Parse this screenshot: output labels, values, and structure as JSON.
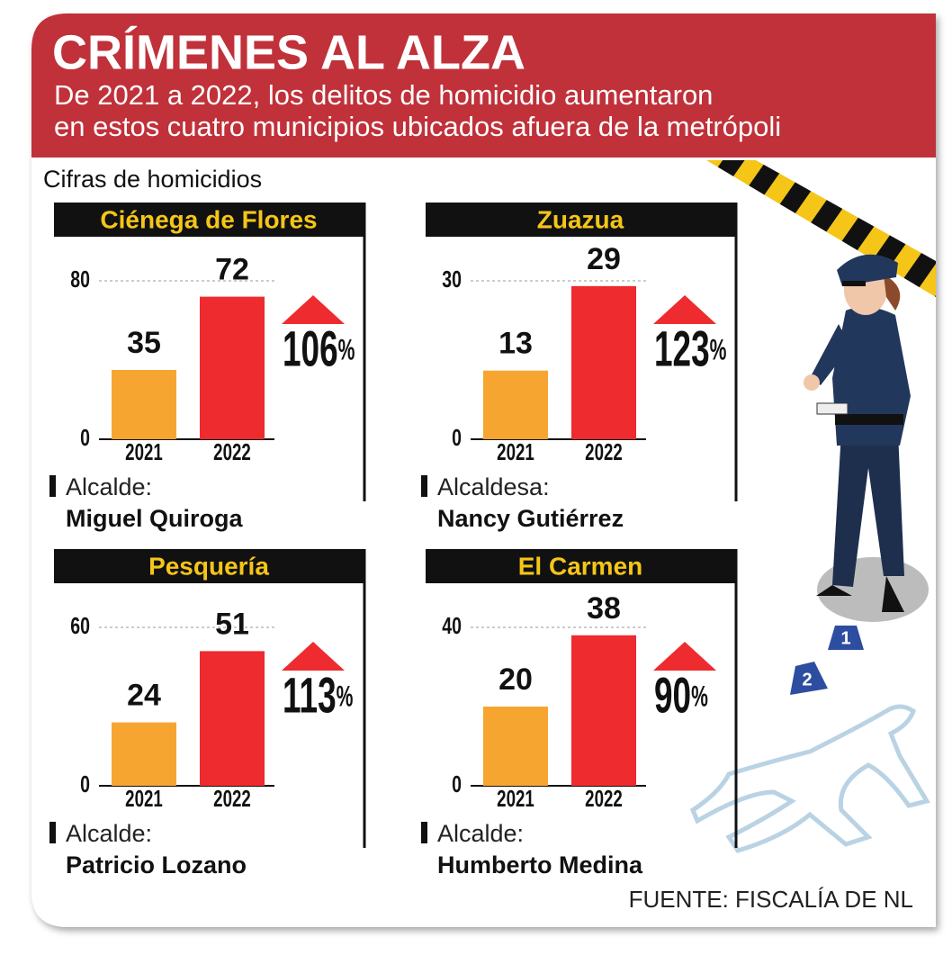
{
  "header": {
    "title": "CRÍMENES AL ALZA",
    "subtitle": [
      "De 2021 a 2022, los delitos de homicidio aumentaron",
      "en estos cuatro municipios ubicados afuera de la metrópoli"
    ]
  },
  "section_label": "Cifras de homicidios",
  "chart_data": [
    {
      "type": "bar",
      "title": "Ciénega de Flores",
      "categories": [
        "2021",
        "2022"
      ],
      "values": [
        35,
        72
      ],
      "colors": [
        "#f7a531",
        "#ee2b2e"
      ],
      "ylim": [
        0,
        80
      ],
      "yticks": [
        0,
        80
      ],
      "grid": true,
      "change": 106,
      "change_unit": "%",
      "mayor_role": "Alcalde:",
      "mayor_name": "Miguel Quiroga"
    },
    {
      "type": "bar",
      "title": "Zuazua",
      "categories": [
        "2021",
        "2022"
      ],
      "values": [
        13,
        29
      ],
      "colors": [
        "#f7a531",
        "#ee2b2e"
      ],
      "ylim": [
        0,
        30
      ],
      "yticks": [
        0,
        30
      ],
      "grid": true,
      "change": 123,
      "change_unit": "%",
      "mayor_role": "Alcaldesa:",
      "mayor_name": "Nancy Gutiérrez"
    },
    {
      "type": "bar",
      "title": "Pesquería",
      "categories": [
        "2021",
        "2022"
      ],
      "values": [
        24,
        51
      ],
      "colors": [
        "#f7a531",
        "#ee2b2e"
      ],
      "ylim": [
        0,
        60
      ],
      "yticks": [
        0,
        60
      ],
      "grid": true,
      "change": 113,
      "change_unit": "%",
      "mayor_role": "Alcalde:",
      "mayor_name": "Patricio Lozano"
    },
    {
      "type": "bar",
      "title": "El Carmen",
      "categories": [
        "2021",
        "2022"
      ],
      "values": [
        20,
        38
      ],
      "colors": [
        "#f7a531",
        "#ee2b2e"
      ],
      "ylim": [
        0,
        40
      ],
      "yticks": [
        0,
        40
      ],
      "grid": true,
      "change": 90,
      "change_unit": "%",
      "mayor_role": "Alcalde:",
      "mayor_name": "Humberto Medina"
    }
  ],
  "markers": [
    "1",
    "2"
  ],
  "source": "FUENTE: FISCALÍA DE NL"
}
